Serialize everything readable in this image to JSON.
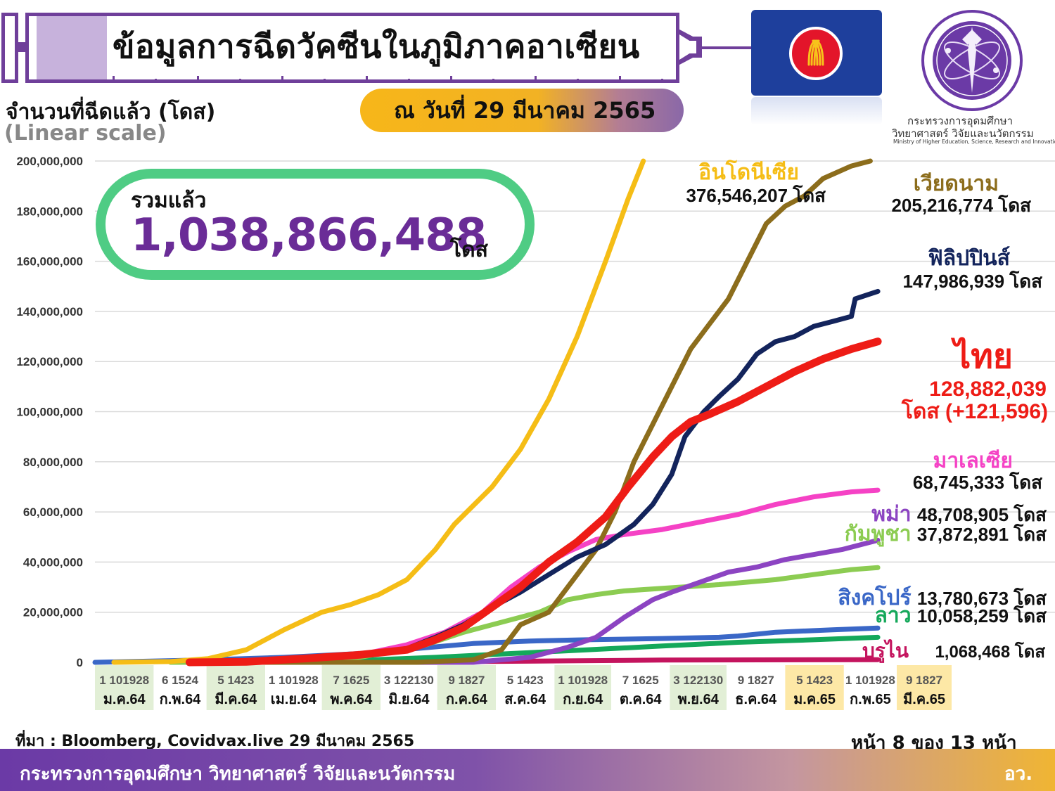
{
  "header": {
    "title": "ข้อมูลการฉีดวัคซีนในภูมิภาคอาเซียน",
    "date": "ณ วันที่ 29 มีนาคม 2565"
  },
  "ministry": {
    "name_th_line1": "กระทรวงการอุดมศึกษา",
    "name_th_line2": "วิทยาศาสตร์ วิจัยและนวัตกรรม",
    "name_en": "Ministry of Higher Education, Science, Research and Innovation"
  },
  "total": {
    "label": "รวมแล้ว",
    "value": "1,038,866,488",
    "unit": "โดส"
  },
  "footer": {
    "source": "ที่มา : Bloomberg, Covidvax.live 29 มีนาคม 2565",
    "page": "หน้า 8 ของ 13 หน้า",
    "ministry": "กระทรวงการอุดมศึกษา วิทยาศาสตร์ วิจัยและนวัตกรรม",
    "abbr": "อว."
  },
  "colors": {
    "accent_purple": "#6a2c97",
    "green_box": "#4fcc84",
    "gridline": "#d9d9d9"
  },
  "chart_data": {
    "type": "line",
    "ylabel": "จำนวนที่ฉีดแล้ว (โดส)",
    "yscale_note": "(Linear scale)",
    "ylim": [
      0,
      200000000
    ],
    "y_ticks": [
      0,
      20000000,
      40000000,
      60000000,
      80000000,
      100000000,
      120000000,
      140000000,
      160000000,
      180000000,
      200000000
    ],
    "y_tick_labels": [
      "0",
      "20,000,000",
      "40,000,000",
      "60,000,000",
      "80,000,000",
      "100,000,000",
      "120,000,000",
      "140,000,000",
      "160,000,000",
      "180,000,000",
      "200,000,000"
    ],
    "x_range": [
      0,
      453
    ],
    "months": [
      {
        "label": "ม.ค.64",
        "days": "1 101928",
        "start": 0,
        "end": 31,
        "shade": "green"
      },
      {
        "label": "ก.พ.64",
        "days": "6 1524",
        "start": 31,
        "end": 59,
        "shade": "none"
      },
      {
        "label": "มี.ค.64",
        "days": "5 1423",
        "start": 59,
        "end": 90,
        "shade": "green"
      },
      {
        "label": "เม.ย.64",
        "days": "1 101928",
        "start": 90,
        "end": 120,
        "shade": "none"
      },
      {
        "label": "พ.ค.64",
        "days": "7 1625",
        "start": 120,
        "end": 151,
        "shade": "green"
      },
      {
        "label": "มิ.ย.64",
        "days": "3 122130",
        "start": 151,
        "end": 181,
        "shade": "none"
      },
      {
        "label": "ก.ค.64",
        "days": "9 1827",
        "start": 181,
        "end": 212,
        "shade": "green"
      },
      {
        "label": "ส.ค.64",
        "days": "5 1423",
        "start": 212,
        "end": 243,
        "shade": "none"
      },
      {
        "label": "ก.ย.64",
        "days": "1 101928",
        "start": 243,
        "end": 273,
        "shade": "green"
      },
      {
        "label": "ต.ค.64",
        "days": "7 1625",
        "start": 273,
        "end": 304,
        "shade": "none"
      },
      {
        "label": "พ.ย.64",
        "days": "3 122130",
        "start": 304,
        "end": 334,
        "shade": "green"
      },
      {
        "label": "ธ.ค.64",
        "days": "9 1827",
        "start": 334,
        "end": 365,
        "shade": "none"
      },
      {
        "label": "ม.ค.65",
        "days": "5 1423",
        "start": 365,
        "end": 396,
        "shade": "yellow"
      },
      {
        "label": "ก.พ.65",
        "days": "1 101928",
        "start": 396,
        "end": 424,
        "shade": "none"
      },
      {
        "label": "มี.ค.65",
        "days": "9 1827",
        "start": 424,
        "end": 453,
        "shade": "yellow"
      }
    ],
    "series": [
      {
        "name": "อินโดนีเซีย",
        "value_label": "376,546,207 โดส",
        "color": "#f5bd16",
        "points": [
          [
            10,
            0
          ],
          [
            40,
            300000
          ],
          [
            60,
            1500000
          ],
          [
            80,
            5000000
          ],
          [
            100,
            13000000
          ],
          [
            120,
            20000000
          ],
          [
            135,
            23000000
          ],
          [
            150,
            27000000
          ],
          [
            165,
            33000000
          ],
          [
            180,
            45000000
          ],
          [
            190,
            55000000
          ],
          [
            210,
            70000000
          ],
          [
            225,
            85000000
          ],
          [
            240,
            105000000
          ],
          [
            255,
            130000000
          ],
          [
            270,
            160000000
          ],
          [
            282,
            185000000
          ],
          [
            290,
            200000000
          ]
        ]
      },
      {
        "name": "เวียดนาม",
        "value_label": "205,216,774 โดส",
        "color": "#8c6d1c",
        "points": [
          [
            60,
            0
          ],
          [
            120,
            0
          ],
          [
            170,
            0
          ],
          [
            200,
            1000000
          ],
          [
            215,
            5000000
          ],
          [
            225,
            15000000
          ],
          [
            240,
            20000000
          ],
          [
            250,
            30000000
          ],
          [
            265,
            45000000
          ],
          [
            275,
            60000000
          ],
          [
            285,
            80000000
          ],
          [
            295,
            95000000
          ],
          [
            305,
            110000000
          ],
          [
            315,
            125000000
          ],
          [
            325,
            135000000
          ],
          [
            335,
            145000000
          ],
          [
            345,
            160000000
          ],
          [
            355,
            175000000
          ],
          [
            365,
            182000000
          ],
          [
            375,
            186000000
          ],
          [
            385,
            193000000
          ],
          [
            400,
            198000000
          ],
          [
            410,
            200000000
          ]
        ]
      },
      {
        "name": "ฟิลิปปินส์",
        "value_label": "147,986,939 โดส",
        "color": "#13245c",
        "points": [
          [
            60,
            0
          ],
          [
            100,
            800000
          ],
          [
            140,
            3000000
          ],
          [
            165,
            5500000
          ],
          [
            180,
            10000000
          ],
          [
            195,
            15000000
          ],
          [
            210,
            22000000
          ],
          [
            225,
            28000000
          ],
          [
            240,
            35000000
          ],
          [
            255,
            42000000
          ],
          [
            270,
            47000000
          ],
          [
            285,
            55000000
          ],
          [
            295,
            63000000
          ],
          [
            305,
            75000000
          ],
          [
            312,
            90000000
          ],
          [
            322,
            100000000
          ],
          [
            330,
            106000000
          ],
          [
            340,
            113000000
          ],
          [
            350,
            123000000
          ],
          [
            360,
            128000000
          ],
          [
            370,
            130000000
          ],
          [
            380,
            134000000
          ],
          [
            390,
            136000000
          ],
          [
            400,
            138000000
          ],
          [
            402,
            145000000
          ],
          [
            410,
            147000000
          ],
          [
            414,
            148000000
          ]
        ]
      },
      {
        "name": "ไทย",
        "value_label": "128,882,039",
        "value_label2": "โดส (+121,596)",
        "color": "#ee1c16",
        "points": [
          [
            50,
            0
          ],
          [
            80,
            200000
          ],
          [
            110,
            1500000
          ],
          [
            140,
            3000000
          ],
          [
            165,
            5000000
          ],
          [
            180,
            9000000
          ],
          [
            195,
            14000000
          ],
          [
            210,
            22000000
          ],
          [
            225,
            30000000
          ],
          [
            240,
            40000000
          ],
          [
            255,
            48000000
          ],
          [
            270,
            58000000
          ],
          [
            282,
            70000000
          ],
          [
            295,
            82000000
          ],
          [
            305,
            90000000
          ],
          [
            315,
            96000000
          ],
          [
            325,
            99000000
          ],
          [
            340,
            104000000
          ],
          [
            355,
            110000000
          ],
          [
            370,
            116000000
          ],
          [
            385,
            121000000
          ],
          [
            400,
            125000000
          ],
          [
            414,
            128000000
          ]
        ]
      },
      {
        "name": "มาเลเซีย",
        "value_label": "68,745,333 โดส",
        "color": "#f542c5",
        "points": [
          [
            60,
            0
          ],
          [
            110,
            1500000
          ],
          [
            140,
            3000000
          ],
          [
            165,
            7000000
          ],
          [
            185,
            12000000
          ],
          [
            205,
            20000000
          ],
          [
            220,
            30000000
          ],
          [
            235,
            38000000
          ],
          [
            250,
            44000000
          ],
          [
            265,
            49000000
          ],
          [
            280,
            51000000
          ],
          [
            300,
            53000000
          ],
          [
            320,
            56000000
          ],
          [
            340,
            59000000
          ],
          [
            360,
            63000000
          ],
          [
            380,
            66000000
          ],
          [
            400,
            68000000
          ],
          [
            414,
            68700000
          ]
        ]
      },
      {
        "name": "พม่า",
        "value_label": "48,708,905 โดส",
        "color": "#8c44c2",
        "points": [
          [
            60,
            0
          ],
          [
            200,
            0
          ],
          [
            230,
            2000000
          ],
          [
            250,
            6000000
          ],
          [
            265,
            10000000
          ],
          [
            280,
            18000000
          ],
          [
            295,
            25000000
          ],
          [
            305,
            28000000
          ],
          [
            320,
            32000000
          ],
          [
            335,
            36000000
          ],
          [
            350,
            38000000
          ],
          [
            365,
            41000000
          ],
          [
            380,
            43000000
          ],
          [
            395,
            45000000
          ],
          [
            414,
            48700000
          ]
        ]
      },
      {
        "name": "กัมพูชา",
        "value_label": "37,872,891 โดส",
        "color": "#8ccc52",
        "points": [
          [
            40,
            0
          ],
          [
            100,
            0
          ],
          [
            140,
            2000000
          ],
          [
            175,
            7000000
          ],
          [
            195,
            12000000
          ],
          [
            215,
            16000000
          ],
          [
            235,
            20000000
          ],
          [
            250,
            25000000
          ],
          [
            265,
            27000000
          ],
          [
            280,
            28500000
          ],
          [
            300,
            29500000
          ],
          [
            330,
            31000000
          ],
          [
            360,
            33000000
          ],
          [
            380,
            35000000
          ],
          [
            400,
            37000000
          ],
          [
            414,
            37800000
          ]
        ]
      },
      {
        "name": "สิงคโปร์",
        "value_label": "13,780,673 โดส",
        "color": "#3a67c7",
        "points": [
          [
            0,
            0
          ],
          [
            60,
            1000000
          ],
          [
            100,
            2000000
          ],
          [
            140,
            3500000
          ],
          [
            170,
            5500000
          ],
          [
            200,
            7500000
          ],
          [
            230,
            8500000
          ],
          [
            260,
            9000000
          ],
          [
            300,
            9500000
          ],
          [
            330,
            10000000
          ],
          [
            340,
            10500000
          ],
          [
            360,
            12000000
          ],
          [
            390,
            13000000
          ],
          [
            414,
            13700000
          ]
        ]
      },
      {
        "name": "ลาว",
        "value_label": "10,058,259 โดส",
        "color": "#14a85a",
        "points": [
          [
            60,
            0
          ],
          [
            100,
            300000
          ],
          [
            140,
            800000
          ],
          [
            180,
            2000000
          ],
          [
            220,
            3500000
          ],
          [
            260,
            5000000
          ],
          [
            300,
            6500000
          ],
          [
            340,
            8000000
          ],
          [
            380,
            9000000
          ],
          [
            414,
            10000000
          ]
        ]
      },
      {
        "name": "บรูไน",
        "value_label": "1,068,468 โดส",
        "color": "#c4145e",
        "points": [
          [
            60,
            0
          ],
          [
            150,
            100000
          ],
          [
            200,
            300000
          ],
          [
            250,
            600000
          ],
          [
            300,
            900000
          ],
          [
            414,
            1068000
          ]
        ]
      }
    ]
  }
}
